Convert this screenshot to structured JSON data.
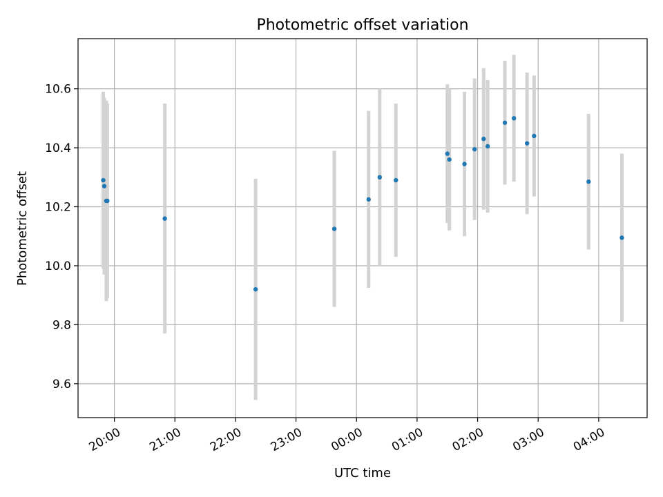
{
  "chart_data": {
    "type": "scatter",
    "title": "Photometric offset variation",
    "xlabel": "UTC time",
    "ylabel": "Photometric offset",
    "grid": true,
    "x_tick_labels": [
      "20:00",
      "21:00",
      "22:00",
      "23:00",
      "00:00",
      "01:00",
      "02:00",
      "03:00",
      "04:00"
    ],
    "y_ticks": [
      9.6,
      9.8,
      10.0,
      10.2,
      10.4,
      10.6
    ],
    "y_tick_labels": [
      "9.6",
      "9.8",
      "10.0",
      "10.2",
      "10.4",
      "10.6"
    ],
    "ylim": [
      9.485,
      10.77
    ],
    "xlim": [
      "19:24",
      "04:48"
    ],
    "colors": {
      "point": "#1f77b4",
      "errorbar": "#d3d3d3",
      "grid": "#b0b0b0"
    },
    "points": [
      {
        "x": "19:49",
        "y": 10.29,
        "yerr": 0.3
      },
      {
        "x": "19:50",
        "y": 10.27,
        "yerr": 0.3
      },
      {
        "x": "19:52",
        "y": 10.22,
        "yerr": 0.34
      },
      {
        "x": "19:53",
        "y": 10.22,
        "yerr": 0.33
      },
      {
        "x": "20:50",
        "y": 10.16,
        "yerr": 0.39
      },
      {
        "x": "22:20",
        "y": 9.92,
        "yerr": 0.375
      },
      {
        "x": "23:38",
        "y": 10.125,
        "yerr": 0.265
      },
      {
        "x": "00:12",
        "y": 10.225,
        "yerr": 0.3
      },
      {
        "x": "00:23",
        "y": 10.3,
        "yerr": 0.3
      },
      {
        "x": "00:39",
        "y": 10.29,
        "yerr": 0.26
      },
      {
        "x": "01:30",
        "y": 10.38,
        "yerr": 0.235
      },
      {
        "x": "01:32",
        "y": 10.36,
        "yerr": 0.24
      },
      {
        "x": "01:47",
        "y": 10.345,
        "yerr": 0.245
      },
      {
        "x": "01:57",
        "y": 10.395,
        "yerr": 0.24
      },
      {
        "x": "02:06",
        "y": 10.43,
        "yerr": 0.24
      },
      {
        "x": "02:10",
        "y": 10.405,
        "yerr": 0.225
      },
      {
        "x": "02:27",
        "y": 10.485,
        "yerr": 0.21
      },
      {
        "x": "02:36",
        "y": 10.5,
        "yerr": 0.215
      },
      {
        "x": "02:49",
        "y": 10.415,
        "yerr": 0.24
      },
      {
        "x": "02:56",
        "y": 10.44,
        "yerr": 0.205
      },
      {
        "x": "03:50",
        "y": 10.285,
        "yerr": 0.23
      },
      {
        "x": "04:23",
        "y": 10.095,
        "yerr": 0.285
      }
    ]
  }
}
